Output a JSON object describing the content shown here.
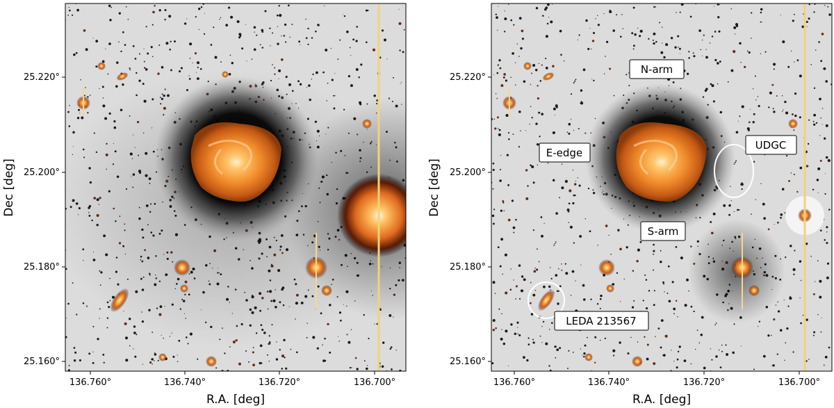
{
  "panels": [
    {
      "id": "left",
      "x_ticks": [
        "136.760°",
        "136.740°",
        "136.720°",
        "136.700°"
      ],
      "y_ticks": [
        "25.220°",
        "25.200°",
        "25.180°",
        "25.160°"
      ],
      "xlabel": "R.A. [deg]",
      "ylabel": "Dec [deg]",
      "annotations": []
    },
    {
      "id": "right",
      "x_ticks": [
        "136.760°",
        "136.740°",
        "136.720°",
        "136.700°"
      ],
      "y_ticks": [
        "25.220°",
        "25.200°",
        "25.180°",
        "25.160°"
      ],
      "xlabel": "R.A. [deg]",
      "ylabel": "Dec [deg]",
      "annotations": [
        "N-arm",
        "E-edge",
        "UDGC",
        "S-arm",
        "LEDA 213567"
      ]
    }
  ],
  "colors": {
    "galaxy_core": "#ffd27a",
    "galaxy_body": "#f08a2a",
    "halo": "#111111",
    "background": "#d9d9d9",
    "circle_marker": "#ffffff"
  }
}
